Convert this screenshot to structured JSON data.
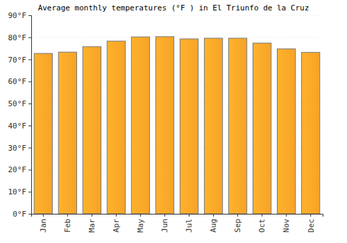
{
  "chart_data": {
    "type": "bar",
    "title": "Average monthly temperatures (°F ) in El Triunfo de la Cruz",
    "categories": [
      "Jan",
      "Feb",
      "Mar",
      "Apr",
      "May",
      "Jun",
      "Jul",
      "Aug",
      "Sep",
      "Oct",
      "Nov",
      "Dec"
    ],
    "values": [
      72.7,
      73.3,
      75.8,
      78.3,
      80.2,
      80.3,
      79.3,
      79.6,
      79.6,
      77.4,
      74.8,
      73.2
    ],
    "color": "#ffa929",
    "ylim": [
      0,
      90
    ],
    "yticks": [
      {
        "value": 0,
        "label": "0°F"
      },
      {
        "value": 10,
        "label": "10°F"
      },
      {
        "value": 20,
        "label": "20°F"
      },
      {
        "value": 30,
        "label": "30°F"
      },
      {
        "value": 40,
        "label": "40°F"
      },
      {
        "value": 50,
        "label": "50°F"
      },
      {
        "value": 60,
        "label": "60°F"
      },
      {
        "value": 70,
        "label": "70°F"
      },
      {
        "value": 80,
        "label": "80°F"
      },
      {
        "value": 90,
        "label": "90°F"
      }
    ],
    "grid": true
  }
}
